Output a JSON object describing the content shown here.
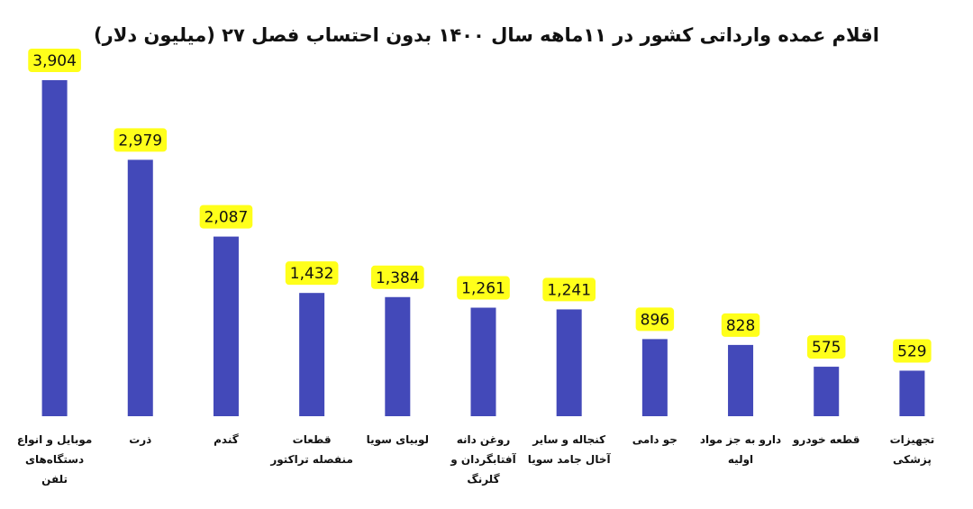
{
  "chart_data": {
    "type": "bar",
    "title": "اقلام عمده وارداتی کشور در ۱۱ماهه سال ۱۴۰۰ بدون احتساب فصل ۲۷ (میلیون دلار)",
    "categories": [
      "موبایل و انواع دستگاه‌های تلفن",
      "ذرت",
      "گندم",
      "قطعات منفصله تراکتور",
      "لوبیای سویا",
      "روغن دانه آفتابگردان و گلرنگ",
      "کنجاله و سایر آخال جامد سویا",
      "جو دامی",
      "دارو به جز مواد اولیه",
      "قطعه خودرو",
      "تجهیزات پزشکی"
    ],
    "values": [
      3904,
      2979,
      2087,
      1432,
      1384,
      1261,
      1241,
      896,
      828,
      575,
      529
    ],
    "value_labels": [
      "3,904",
      "2,979",
      "2,087",
      "1,432",
      "1,384",
      "1,261",
      "1,241",
      "896",
      "828",
      "575",
      "529"
    ],
    "color": "#4349b9",
    "label_color": "#ffff1a"
  }
}
